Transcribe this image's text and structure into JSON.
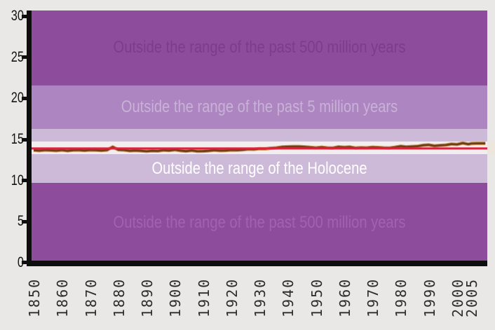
{
  "chart_data": {
    "type": "line",
    "ylim": [
      0,
      30
    ],
    "y_ticks": [
      0,
      5,
      10,
      15,
      20,
      25,
      30
    ],
    "x_ticks": [
      1850,
      1860,
      1870,
      1880,
      1890,
      1900,
      1910,
      1920,
      1930,
      1940,
      1950,
      1960,
      1970,
      1980,
      1990,
      2000,
      2005
    ],
    "x_tick_labels": [
      "1850",
      "1860",
      "1870",
      "1880",
      "1890",
      "1900",
      "1910",
      "1920",
      "1930",
      "1940",
      "1950",
      "1960",
      "1970",
      "1980",
      "1990",
      "2000",
      "2005"
    ],
    "grid": false,
    "legend": "none",
    "bands": [
      {
        "name": "outside-500-million-years-upper",
        "from": 21.57,
        "to": 32,
        "color": "#8e4c9d",
        "label": "Outside the range of the past 500 million years",
        "label_color": "#7b3d8d"
      },
      {
        "name": "outside-5-million-years",
        "from": 16.28,
        "to": 21.57,
        "color": "#ac85c1",
        "label": "Outside the range of the past 5 million years",
        "label_color": "#c9b1d8"
      },
      {
        "name": "within-5-million-years-sliver",
        "from": 14.75,
        "to": 16.28,
        "color": "#cdbad9",
        "label": "",
        "label_color": ""
      },
      {
        "name": "holocene-range",
        "from": 13.21,
        "to": 14.75,
        "color": "#f2edef",
        "label": "",
        "label_color": ""
      },
      {
        "name": "outside-holocene",
        "from": 9.72,
        "to": 13.21,
        "color": "#cdbad9",
        "label": "Outside the range of the Holocene",
        "label_color": "#ffffff"
      },
      {
        "name": "outside-500-million-years-lower",
        "from": 0,
        "to": 9.72,
        "color": "#8e4c9d",
        "label": "Outside the range of the past 500 million years",
        "label_color": "#a163af"
      }
    ],
    "reference_line": {
      "name": "mean-temperature-reference",
      "value": 13.9,
      "color": "#e2203e"
    },
    "series": [
      {
        "name": "observed-global-mean-temperature",
        "color": "#6e3e14",
        "halo_color": "#c18546",
        "points": [
          [
            1850,
            13.7
          ],
          [
            1852,
            13.64
          ],
          [
            1854,
            13.72
          ],
          [
            1856,
            13.68
          ],
          [
            1858,
            13.64
          ],
          [
            1860,
            13.72
          ],
          [
            1862,
            13.62
          ],
          [
            1864,
            13.7
          ],
          [
            1866,
            13.72
          ],
          [
            1868,
            13.66
          ],
          [
            1870,
            13.72
          ],
          [
            1872,
            13.7
          ],
          [
            1874,
            13.66
          ],
          [
            1876,
            13.72
          ],
          [
            1878,
            14.08
          ],
          [
            1880,
            13.74
          ],
          [
            1882,
            13.72
          ],
          [
            1884,
            13.62
          ],
          [
            1886,
            13.66
          ],
          [
            1888,
            13.62
          ],
          [
            1890,
            13.56
          ],
          [
            1892,
            13.62
          ],
          [
            1894,
            13.6
          ],
          [
            1896,
            13.7
          ],
          [
            1898,
            13.66
          ],
          [
            1900,
            13.74
          ],
          [
            1902,
            13.64
          ],
          [
            1904,
            13.58
          ],
          [
            1906,
            13.66
          ],
          [
            1908,
            13.56
          ],
          [
            1910,
            13.58
          ],
          [
            1912,
            13.62
          ],
          [
            1914,
            13.7
          ],
          [
            1916,
            13.64
          ],
          [
            1918,
            13.66
          ],
          [
            1920,
            13.72
          ],
          [
            1922,
            13.7
          ],
          [
            1924,
            13.74
          ],
          [
            1926,
            13.82
          ],
          [
            1928,
            13.8
          ],
          [
            1930,
            13.88
          ],
          [
            1932,
            13.86
          ],
          [
            1934,
            13.94
          ],
          [
            1936,
            13.98
          ],
          [
            1938,
            14.08
          ],
          [
            1940,
            14.12
          ],
          [
            1942,
            14.14
          ],
          [
            1944,
            14.14
          ],
          [
            1946,
            14.1
          ],
          [
            1948,
            14.04
          ],
          [
            1950,
            13.98
          ],
          [
            1952,
            14.06
          ],
          [
            1954,
            13.98
          ],
          [
            1956,
            13.96
          ],
          [
            1958,
            14.1
          ],
          [
            1960,
            14.04
          ],
          [
            1962,
            14.08
          ],
          [
            1964,
            13.96
          ],
          [
            1966,
            14.0
          ],
          [
            1968,
            13.98
          ],
          [
            1970,
            14.06
          ],
          [
            1972,
            14.02
          ],
          [
            1974,
            13.98
          ],
          [
            1976,
            13.96
          ],
          [
            1978,
            14.06
          ],
          [
            1980,
            14.18
          ],
          [
            1982,
            14.1
          ],
          [
            1984,
            14.14
          ],
          [
            1986,
            14.18
          ],
          [
            1988,
            14.3
          ],
          [
            1990,
            14.34
          ],
          [
            1992,
            14.22
          ],
          [
            1994,
            14.28
          ],
          [
            1996,
            14.32
          ],
          [
            1998,
            14.44
          ],
          [
            2000,
            14.4
          ],
          [
            2002,
            14.56
          ],
          [
            2004,
            14.42
          ],
          [
            2005,
            14.5
          ],
          [
            2007,
            14.53
          ],
          [
            2010,
            14.53
          ]
        ]
      }
    ]
  }
}
